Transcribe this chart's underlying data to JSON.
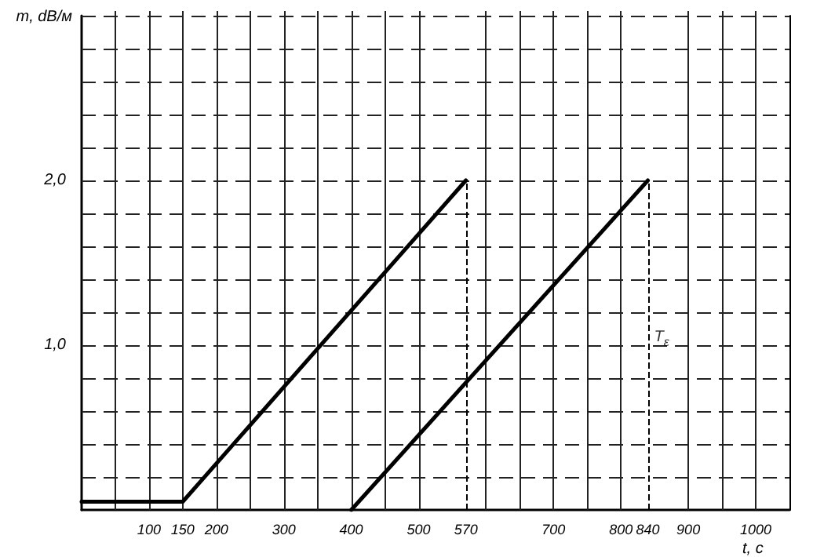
{
  "chart_data": {
    "type": "line",
    "xlabel": "t, c",
    "ylabel": "m, dB/м",
    "series": [
      {
        "color": "#000000",
        "x": [
          0,
          150,
          570
        ],
        "values": [
          0.05,
          0.05,
          2.0
        ]
      },
      {
        "color": "#000000",
        "x": [
          400,
          840
        ],
        "values": [
          0,
          2.0
        ]
      }
    ],
    "xlim": [
      0,
      1050
    ],
    "xticks": [
      {
        "value": 50,
        "label": null
      },
      100,
      150,
      200,
      {
        "value": 250,
        "label": null
      },
      300,
      {
        "value": 350,
        "label": null
      },
      400,
      {
        "value": 450,
        "label": null
      },
      500,
      570,
      {
        "value": 600,
        "label": null
      },
      {
        "value": 650,
        "label": null
      },
      700,
      {
        "value": 750,
        "label": null
      },
      800,
      840,
      900,
      {
        "value": 950,
        "label": null
      },
      1000
    ],
    "ylim": [
      0,
      3.0
    ],
    "yticks": [
      {
        "value": 0.2,
        "label": null
      },
      {
        "value": 0.4,
        "label": null
      },
      {
        "value": 0.6,
        "label": null
      },
      {
        "value": 0.8,
        "label": null
      },
      {
        "value": 1.0,
        "label": "1,0"
      },
      {
        "value": 1.2,
        "label": null
      },
      {
        "value": 1.4,
        "label": null
      },
      {
        "value": 1.6,
        "label": null
      },
      {
        "value": 1.8,
        "label": null
      },
      {
        "value": 2.0,
        "label": "2,0"
      },
      {
        "value": 2.2,
        "label": null
      },
      {
        "value": 2.4,
        "label": null
      },
      {
        "value": 2.6,
        "label": null
      },
      {
        "value": 2.8,
        "label": null
      },
      {
        "value": 3.0,
        "label": null
      }
    ],
    "ref_lines": [
      {
        "axis": "x",
        "value": 570,
        "line_style": "dashed"
      },
      {
        "axis": "x",
        "value": 840,
        "line_style": "dashed"
      }
    ],
    "annotations": [
      {
        "text": "T$_{ε}$",
        "x": 840,
        "y": 1.05
      }
    ],
    "grid": true,
    "marker": "none",
    "line_style": "solid"
  }
}
